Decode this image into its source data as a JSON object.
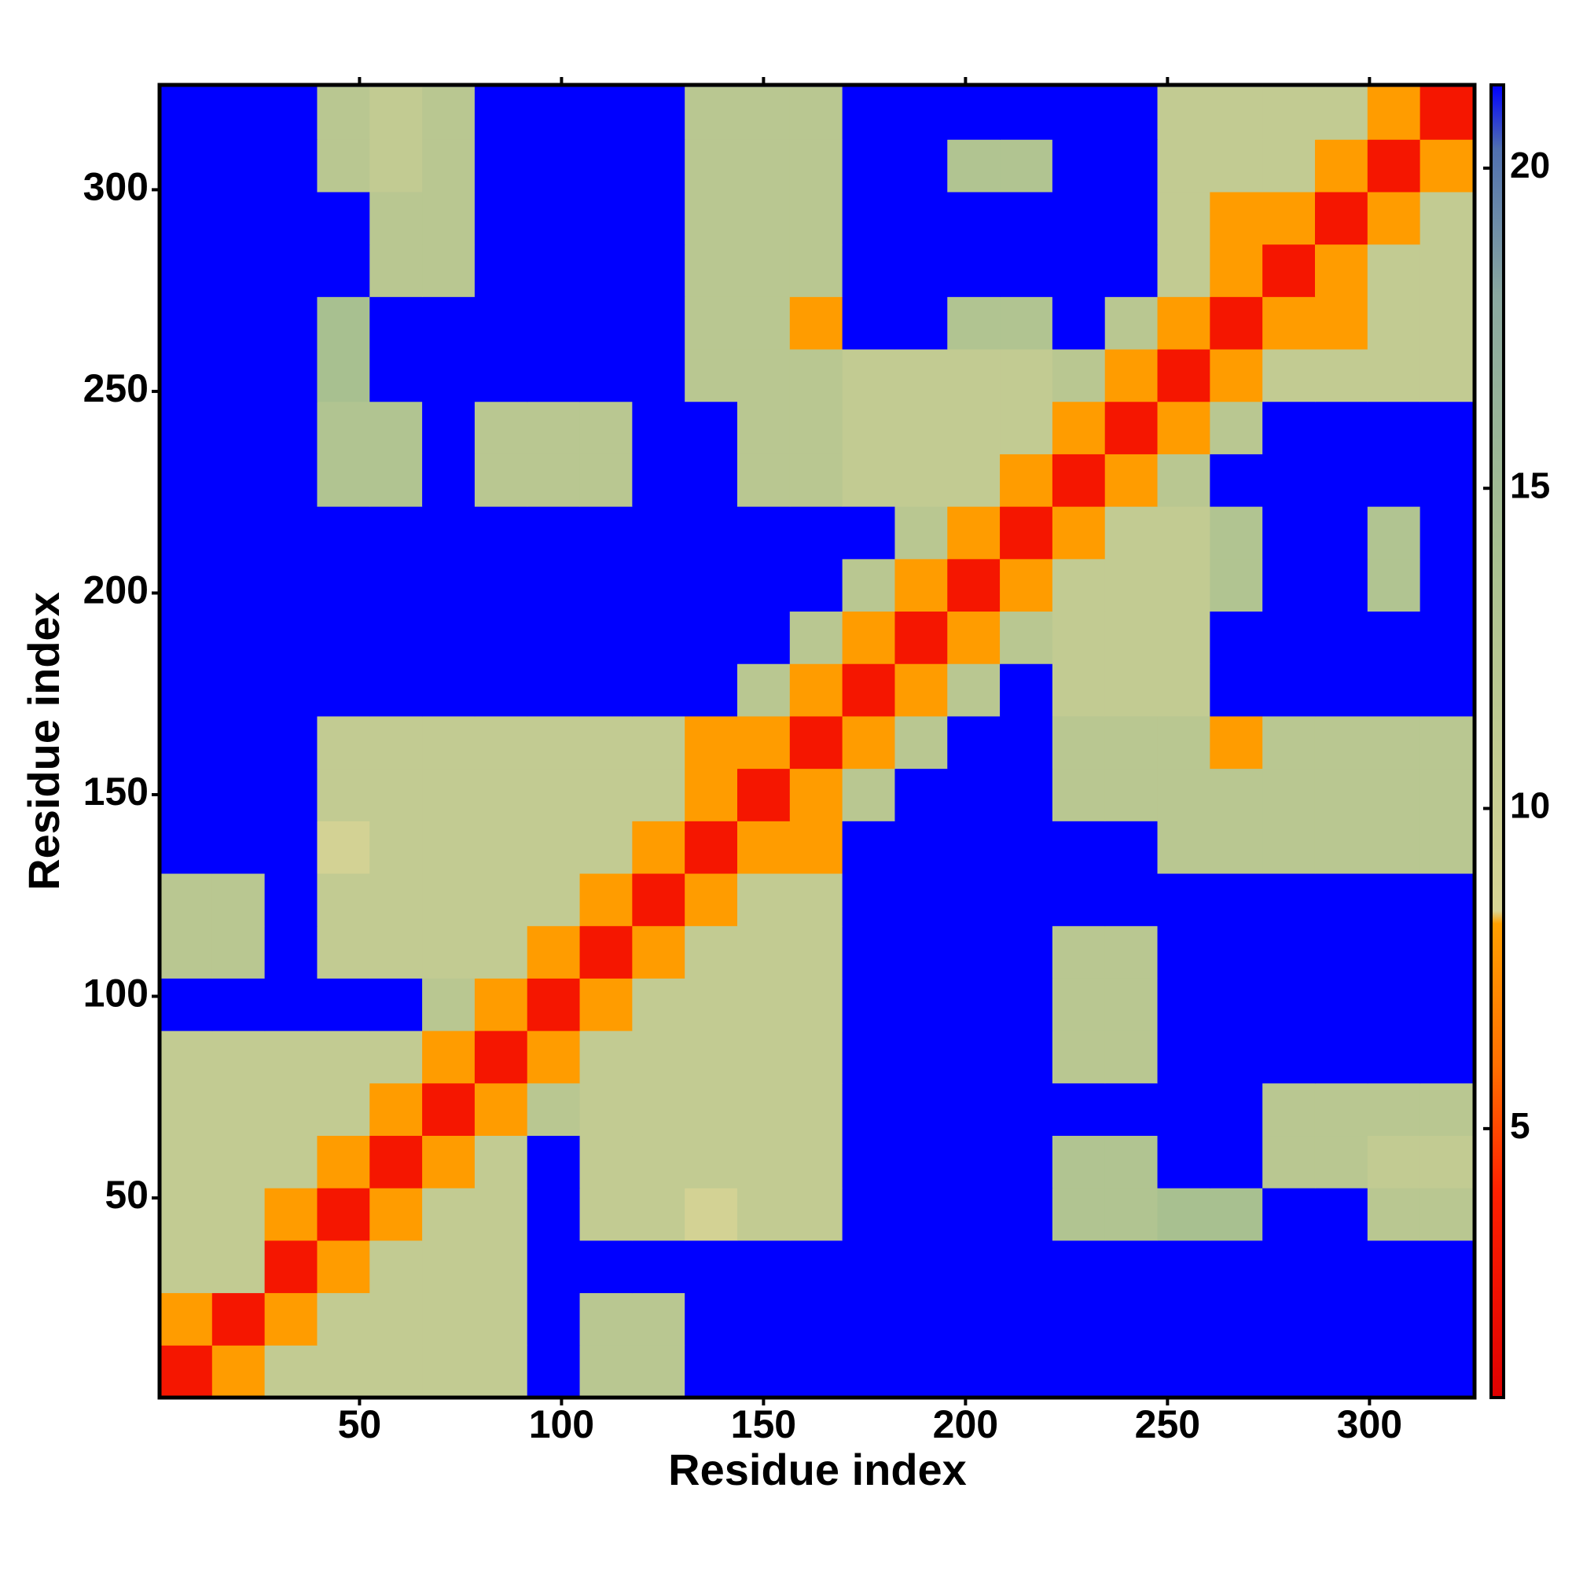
{
  "chart_data": {
    "type": "heatmap",
    "xlabel": "Residue index",
    "ylabel": "Residue index",
    "xlim": [
      0.5,
      326
    ],
    "ylim": [
      0.5,
      326
    ],
    "xticks": [
      50,
      100,
      150,
      200,
      250,
      300
    ],
    "yticks": [
      50,
      100,
      150,
      200,
      250,
      300
    ],
    "x_edges": [
      0.5,
      13.5,
      26.5,
      39.5,
      52.5,
      65.5,
      78.5,
      91.5,
      104.5,
      117.5,
      130.5,
      143.5,
      156.5,
      169.5,
      182.5,
      195.5,
      208.5,
      221.5,
      234.5,
      247.5,
      260.5,
      273.5,
      286.5,
      299.5,
      312.5,
      325.5
    ],
    "y_edges": [
      0.5,
      13.5,
      26.5,
      39.5,
      52.5,
      65.5,
      78.5,
      91.5,
      104.5,
      117.5,
      130.5,
      143.5,
      156.5,
      169.5,
      182.5,
      195.5,
      208.5,
      221.5,
      234.5,
      247.5,
      260.5,
      273.5,
      286.5,
      299.5,
      312.5,
      325.5
    ],
    "z": [
      [
        3,
        8,
        11,
        11,
        11,
        11,
        11,
        25,
        12,
        12,
        25,
        25,
        25,
        25,
        25,
        25,
        25,
        25,
        25,
        25,
        25,
        25,
        25,
        25,
        25
      ],
      [
        8,
        3,
        8,
        11,
        11,
        11,
        11,
        25,
        12,
        12,
        25,
        25,
        25,
        25,
        25,
        25,
        25,
        25,
        25,
        25,
        25,
        25,
        25,
        25,
        25
      ],
      [
        11,
        11,
        3,
        8,
        11,
        11,
        11,
        25,
        25,
        25,
        25,
        25,
        25,
        25,
        25,
        25,
        25,
        25,
        25,
        25,
        25,
        25,
        25,
        25,
        25
      ],
      [
        11,
        11,
        8,
        3,
        8,
        11,
        11,
        25,
        11,
        11,
        9,
        11,
        11,
        25,
        25,
        25,
        25,
        13,
        13,
        14,
        14,
        25,
        25,
        12,
        12
      ],
      [
        11,
        11,
        11,
        8,
        3,
        8,
        11,
        25,
        11,
        11,
        11,
        11,
        11,
        25,
        25,
        25,
        25,
        13,
        13,
        25,
        25,
        12,
        12,
        11,
        11
      ],
      [
        11,
        11,
        11,
        11,
        8,
        3,
        8,
        12,
        11,
        11,
        11,
        11,
        11,
        25,
        25,
        25,
        25,
        25,
        25,
        25,
        25,
        12,
        12,
        12,
        12
      ],
      [
        11,
        11,
        11,
        11,
        11,
        8,
        3,
        8,
        11,
        11,
        11,
        11,
        11,
        25,
        25,
        25,
        25,
        12,
        12,
        25,
        25,
        25,
        25,
        25,
        25
      ],
      [
        25,
        25,
        25,
        25,
        25,
        12,
        8,
        3,
        8,
        11,
        11,
        11,
        11,
        25,
        25,
        25,
        25,
        12,
        12,
        25,
        25,
        25,
        25,
        25,
        25
      ],
      [
        12,
        12,
        25,
        11,
        11,
        11,
        11,
        8,
        3,
        8,
        11,
        11,
        11,
        25,
        25,
        25,
        25,
        12,
        12,
        25,
        25,
        25,
        25,
        25,
        25
      ],
      [
        12,
        12,
        25,
        11,
        11,
        11,
        11,
        11,
        8,
        3,
        8,
        11,
        11,
        25,
        25,
        25,
        25,
        25,
        25,
        25,
        25,
        25,
        25,
        25,
        25
      ],
      [
        25,
        25,
        25,
        9,
        11,
        11,
        11,
        11,
        11,
        8,
        3,
        8,
        8,
        25,
        25,
        25,
        25,
        25,
        25,
        12,
        12,
        12,
        12,
        12,
        12
      ],
      [
        25,
        25,
        25,
        11,
        11,
        11,
        11,
        11,
        11,
        11,
        8,
        3,
        8,
        12,
        25,
        25,
        25,
        12,
        12,
        12,
        12,
        12,
        12,
        12,
        12
      ],
      [
        25,
        25,
        25,
        11,
        11,
        11,
        11,
        11,
        11,
        11,
        8,
        8,
        3,
        8,
        12,
        25,
        25,
        12,
        12,
        12,
        8,
        12,
        12,
        12,
        12
      ],
      [
        25,
        25,
        25,
        25,
        25,
        25,
        25,
        25,
        25,
        25,
        25,
        12,
        8,
        3,
        8,
        12,
        25,
        11,
        11,
        11,
        25,
        25,
        25,
        25,
        25
      ],
      [
        25,
        25,
        25,
        25,
        25,
        25,
        25,
        25,
        25,
        25,
        25,
        25,
        12,
        8,
        3,
        8,
        12,
        11,
        11,
        11,
        25,
        25,
        25,
        25,
        25
      ],
      [
        25,
        25,
        25,
        25,
        25,
        25,
        25,
        25,
        25,
        25,
        25,
        25,
        25,
        12,
        8,
        3,
        8,
        11,
        11,
        11,
        13,
        25,
        25,
        13,
        25
      ],
      [
        25,
        25,
        25,
        25,
        25,
        25,
        25,
        25,
        25,
        25,
        25,
        25,
        25,
        25,
        12,
        8,
        3,
        8,
        11,
        11,
        13,
        25,
        25,
        13,
        25
      ],
      [
        25,
        25,
        25,
        13,
        13,
        25,
        12,
        12,
        12,
        25,
        25,
        12,
        12,
        11,
        11,
        11,
        8,
        3,
        8,
        12,
        25,
        25,
        25,
        25,
        25
      ],
      [
        25,
        25,
        25,
        13,
        13,
        25,
        12,
        12,
        12,
        25,
        25,
        12,
        12,
        11,
        11,
        11,
        11,
        8,
        3,
        8,
        12,
        25,
        25,
        25,
        25
      ],
      [
        25,
        25,
        25,
        14,
        25,
        25,
        25,
        25,
        25,
        25,
        12,
        12,
        12,
        11,
        11,
        11,
        11,
        12,
        8,
        3,
        8,
        11,
        11,
        11,
        11
      ],
      [
        25,
        25,
        25,
        14,
        25,
        25,
        25,
        25,
        25,
        25,
        12,
        12,
        8,
        25,
        25,
        13,
        13,
        25,
        12,
        8,
        3,
        8,
        8,
        11,
        11
      ],
      [
        25,
        25,
        25,
        25,
        12,
        12,
        25,
        25,
        25,
        25,
        12,
        12,
        12,
        25,
        25,
        25,
        25,
        25,
        25,
        11,
        8,
        3,
        8,
        11,
        11
      ],
      [
        25,
        25,
        25,
        25,
        12,
        12,
        25,
        25,
        25,
        25,
        12,
        12,
        12,
        25,
        25,
        25,
        25,
        25,
        25,
        11,
        8,
        8,
        3,
        8,
        11
      ],
      [
        25,
        25,
        25,
        12,
        11,
        12,
        25,
        25,
        25,
        25,
        12,
        12,
        12,
        25,
        25,
        13,
        13,
        25,
        25,
        11,
        11,
        11,
        8,
        3,
        8
      ],
      [
        25,
        25,
        25,
        12,
        11,
        12,
        25,
        25,
        25,
        25,
        12,
        12,
        12,
        25,
        25,
        25,
        25,
        25,
        25,
        11,
        11,
        11,
        11,
        8,
        3
      ]
    ],
    "zlim": [
      0.8,
      21.3
    ],
    "zticks": [
      5,
      10,
      15,
      20
    ],
    "colorscale": [
      [
        0.8,
        "#e00000"
      ],
      [
        4,
        "#ff2000"
      ],
      [
        6,
        "#ff7000"
      ],
      [
        8.2,
        "#ffa000"
      ],
      [
        8.4,
        "#d8d494"
      ],
      [
        14,
        "#a8c090"
      ],
      [
        18,
        "#8aa8a0"
      ],
      [
        20.3,
        "#5070b0"
      ],
      [
        21.3,
        "#0000ff"
      ]
    ]
  }
}
